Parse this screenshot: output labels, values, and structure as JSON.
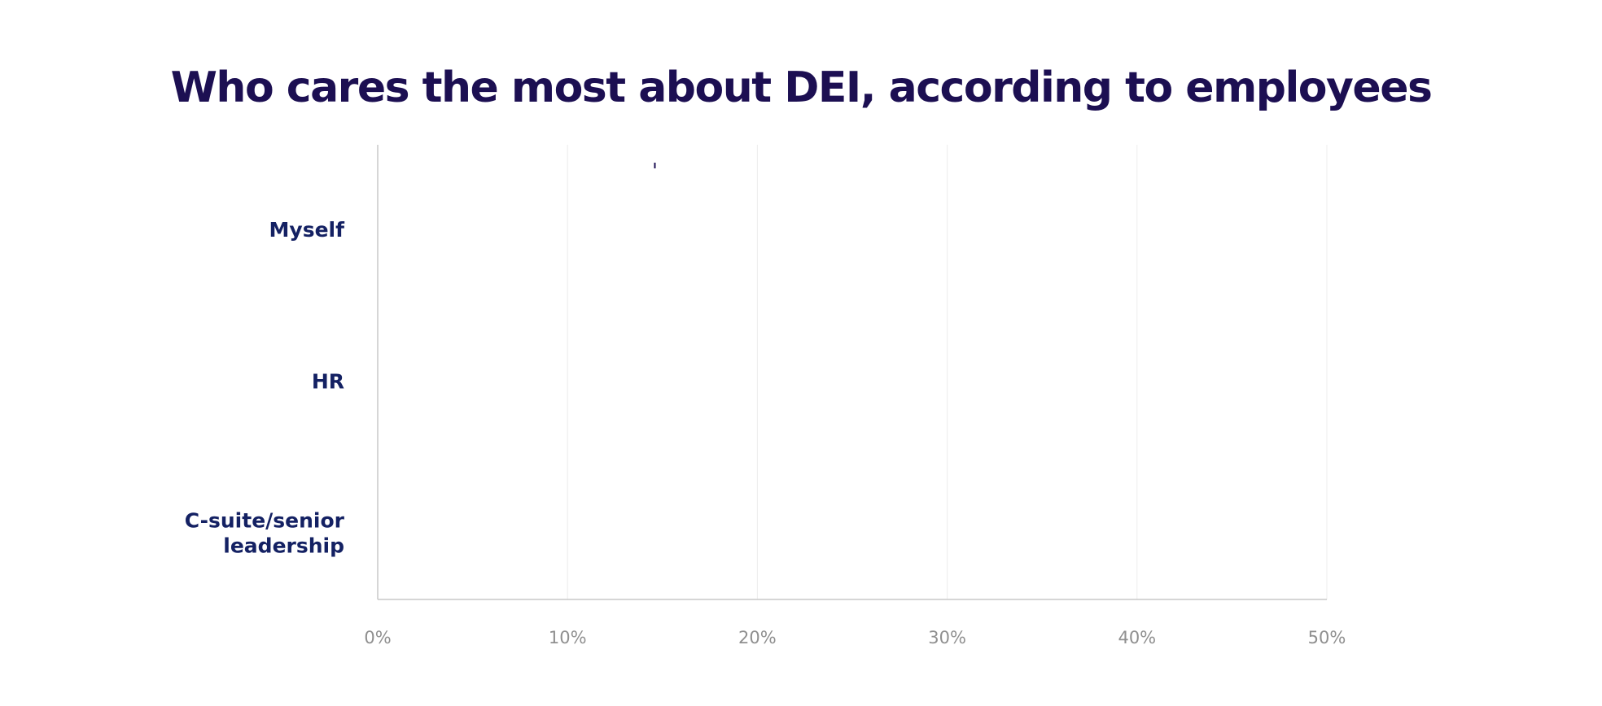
{
  "chart_data": {
    "type": "bar",
    "orientation": "horizontal",
    "title": "Who cares the most about DEI, according to employees",
    "categories": [
      "Myself",
      "HR",
      "C-suite/senior leadership"
    ],
    "category_lines": [
      [
        "Myself"
      ],
      [
        "HR"
      ],
      [
        "C-suite/senior",
        "leadership"
      ]
    ],
    "values": [
      null,
      null,
      null
    ],
    "xlim": [
      0,
      50
    ],
    "ticks": [
      0,
      10,
      20,
      30,
      40,
      50
    ],
    "tick_labels": [
      "0%",
      "10%",
      "20%",
      "30%",
      "40%",
      "50%"
    ],
    "marker_value": 14.6,
    "grid": true,
    "legend": "none",
    "colors": {
      "title": "#1c0f52",
      "category_label": "#142163",
      "tick_label": "#8f8f8f",
      "gridline": "#ececec",
      "axis": "#c8c8c8",
      "bar": "#1c0f52"
    }
  }
}
